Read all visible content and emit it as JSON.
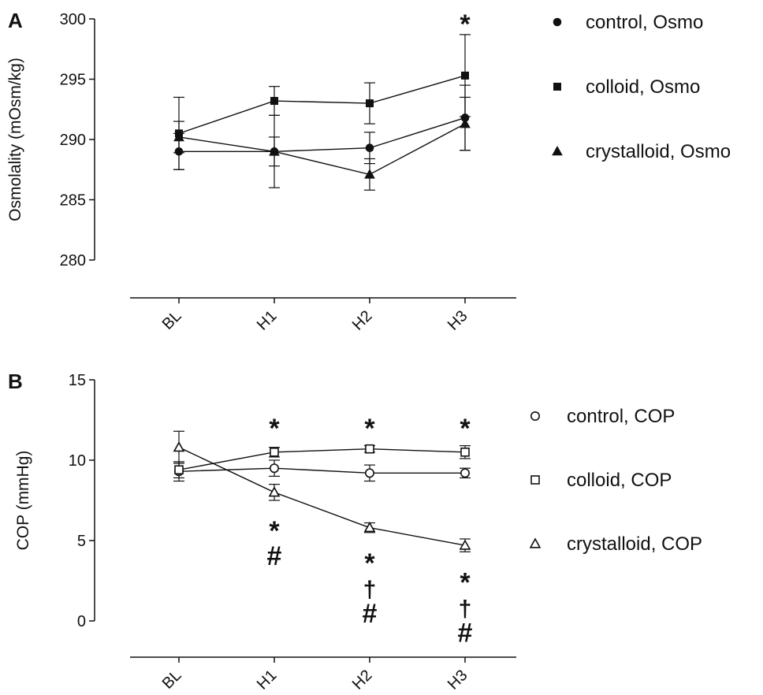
{
  "chart_data": [
    {
      "type": "line",
      "panel": "A",
      "categories": [
        "BL",
        "H1",
        "H2",
        "H3"
      ],
      "ylabel": "Osmolality (mOsm/kg)",
      "xlabel": "",
      "ylim": [
        280,
        300
      ],
      "yticks": [
        280,
        285,
        290,
        295,
        300
      ],
      "grid": false,
      "legend_position": "right",
      "series": [
        {
          "name": "control, Osmo",
          "marker": "circle-filled",
          "values": [
            289.0,
            289.0,
            289.3,
            291.8
          ],
          "error": [
            1.5,
            1.2,
            1.3,
            2.7
          ]
        },
        {
          "name": "colloid, Osmo",
          "marker": "square-filled",
          "values": [
            290.5,
            293.2,
            293.0,
            295.3
          ],
          "error": [
            3.0,
            1.2,
            1.7,
            3.4
          ]
        },
        {
          "name": "crystalloid, Osmo",
          "marker": "triangle-filled",
          "values": [
            290.2,
            289.0,
            287.1,
            291.3
          ],
          "error": [
            1.3,
            3.0,
            1.3,
            2.2
          ]
        }
      ],
      "annotations": [
        {
          "category": "H3",
          "symbols": [
            "*"
          ]
        }
      ]
    },
    {
      "type": "line",
      "panel": "B",
      "categories": [
        "BL",
        "H1",
        "H2",
        "H3"
      ],
      "ylabel": "COP (mmHg)",
      "xlabel": "",
      "ylim": [
        0,
        15
      ],
      "yticks": [
        0,
        5,
        10,
        15
      ],
      "grid": false,
      "legend_position": "right",
      "series": [
        {
          "name": "control, COP",
          "marker": "circle-open",
          "values": [
            9.3,
            9.5,
            9.2,
            9.2
          ],
          "error": [
            0.6,
            0.5,
            0.5,
            0.3
          ]
        },
        {
          "name": "colloid, COP",
          "marker": "square-open",
          "values": [
            9.4,
            10.5,
            10.7,
            10.5
          ],
          "error": [
            0.5,
            0.3,
            0.2,
            0.4
          ]
        },
        {
          "name": "crystalloid, COP",
          "marker": "triangle-open",
          "values": [
            10.8,
            8.0,
            5.8,
            4.7
          ],
          "error": [
            1.0,
            0.5,
            0.3,
            0.4
          ]
        }
      ],
      "annotations": [
        {
          "category": "H1",
          "position": "above",
          "symbols": [
            "*"
          ]
        },
        {
          "category": "H2",
          "position": "above",
          "symbols": [
            "*"
          ]
        },
        {
          "category": "H3",
          "position": "above",
          "symbols": [
            "*"
          ]
        },
        {
          "category": "H1",
          "position": "below",
          "symbols": [
            "*",
            "#"
          ]
        },
        {
          "category": "H2",
          "position": "below",
          "symbols": [
            "*",
            "†",
            "#"
          ]
        },
        {
          "category": "H3",
          "position": "below",
          "symbols": [
            "*",
            "†",
            "#"
          ]
        }
      ]
    }
  ]
}
